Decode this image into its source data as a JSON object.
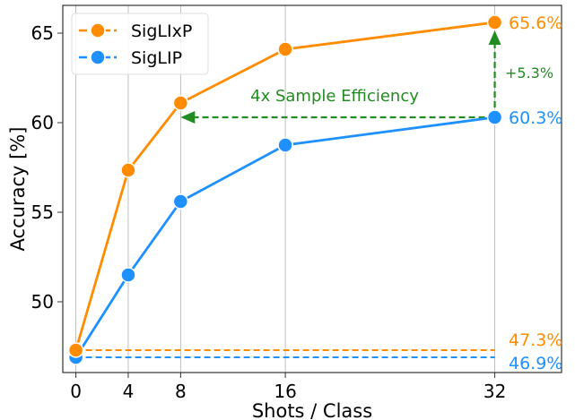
{
  "chart_data": {
    "type": "line",
    "xlabel": "Shots / Class",
    "ylabel": "Accuracy [%]",
    "x": [
      0,
      4,
      8,
      16,
      32
    ],
    "xticks": [
      "0",
      "4",
      "8",
      "16",
      "32"
    ],
    "yticks": [
      "50",
      "55",
      "60",
      "65"
    ],
    "xlim": [
      -1,
      37.1
    ],
    "ylim": [
      46.05,
      66.55
    ],
    "grid": "vertical",
    "legend_position": "top-left",
    "series": [
      {
        "name": "SigLIxP",
        "color": "#ff8c00",
        "values": [
          47.3,
          57.35,
          61.1,
          64.1,
          65.6
        ]
      },
      {
        "name": "SigLIP",
        "color": "#1e90ff",
        "values": [
          46.9,
          51.5,
          55.6,
          58.75,
          60.3
        ]
      }
    ],
    "baselines": [
      {
        "value": 47.3,
        "label": "47.3%",
        "color": "#ff8c00"
      },
      {
        "value": 46.9,
        "label": "46.9%",
        "color": "#1e90ff"
      }
    ],
    "end_labels": [
      {
        "value": 65.6,
        "label": "65.6%",
        "color": "#ff8c00"
      },
      {
        "value": 60.3,
        "label": "60.3%",
        "color": "#1e90ff"
      }
    ],
    "annotations": {
      "color": "#228b22",
      "efficiency_text": "4x Sample Efficiency",
      "efficiency_arrow": {
        "from_x": 32,
        "to_x": 8,
        "y": 60.3
      },
      "gain_text": "+5.3%",
      "gain_arrow": {
        "x": 32,
        "from_y": 60.3,
        "to_y": 65.6
      }
    }
  }
}
